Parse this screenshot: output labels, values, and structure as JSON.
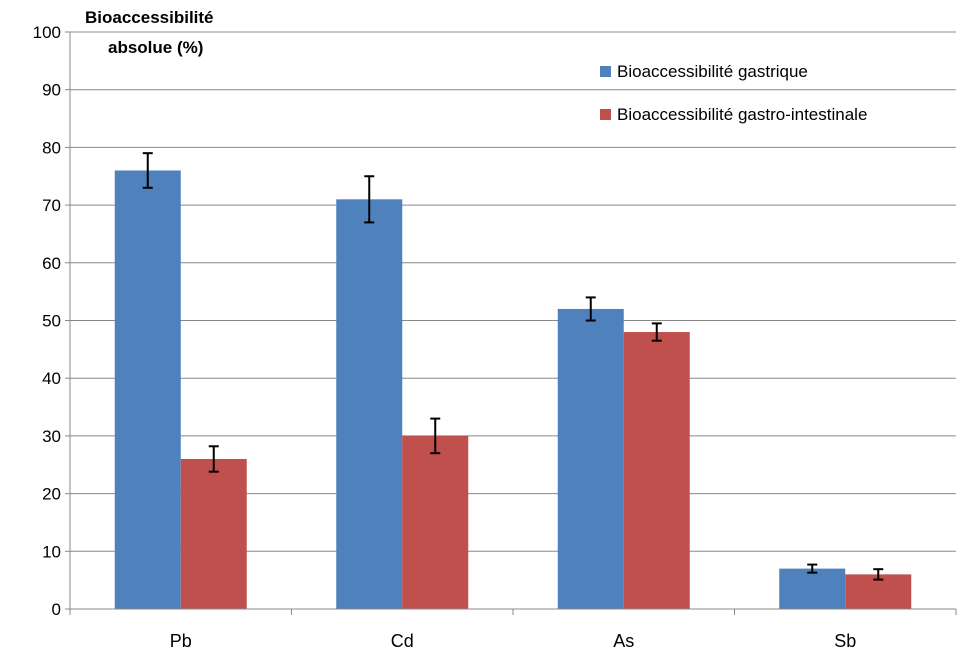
{
  "chart_data": {
    "type": "bar",
    "title": "",
    "xlabel": "",
    "ylabel_lines": [
      "Bioaccessibilité",
      "absolue (%)"
    ],
    "ylim": [
      0,
      100
    ],
    "yticks": [
      0,
      10,
      20,
      30,
      40,
      50,
      60,
      70,
      80,
      90,
      100
    ],
    "grid": true,
    "legend_position": "top-right",
    "categories": [
      "Pb",
      "Cd",
      "As",
      "Sb"
    ],
    "series": [
      {
        "name": "Bioaccessibilité gastrique",
        "color": "#4F81BD",
        "values": [
          76,
          71,
          52,
          7
        ],
        "errors": [
          3,
          4,
          2,
          0.7
        ]
      },
      {
        "name": "Bioaccessibilité gastro-intestinale",
        "color": "#C0504D",
        "values": [
          26,
          30,
          48,
          6
        ],
        "errors": [
          2.2,
          3,
          1.5,
          0.9
        ]
      }
    ]
  }
}
